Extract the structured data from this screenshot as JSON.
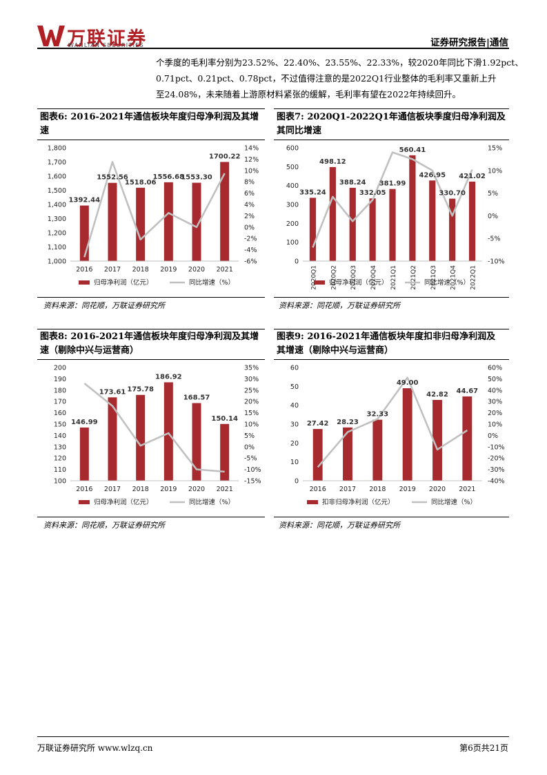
{
  "header": {
    "logo_text": "万联证券",
    "logo_en": "WANLIAN SECURITIES",
    "report_label": "证券研究报告|通信"
  },
  "paragraph": {
    "lines": [
      "个季度的毛利率分别为23.52%、22.40%、23.55%、22.33%，较2020年同比下滑1.92pct、",
      "0.71pct、0.21pct、0.78pct，不过值得注意的是2022Q1行业整体的毛利率又重新上升",
      "至24.08%，未来随着上游原材料紧张的缓解，毛利率有望在2022年持续回升。"
    ]
  },
  "figures": [
    {
      "title_line1": "图表6:  2016-2021年通信板块年度归母净利润及其增",
      "title_line2": "速",
      "source": "资料来源：同花顺，万联证券研究所"
    },
    {
      "title_line1": "图表7:  2020Q1-2022Q1年通信板块季度归母净利润及",
      "title_line2": "其同比增速",
      "source": "资料来源：同花顺，万联证券研究所"
    },
    {
      "title_line1": "图表8:  2016-2021年通信板块年度归母净利润及其增",
      "title_line2": "速（剔除中兴与运营商）",
      "source": "资料来源：同花顺，万联证券研究所"
    },
    {
      "title_line1": "图表9:  2016-2021年通信板块年度扣非归母净利润及",
      "title_line2": "其增速（剔除中兴与运营商）",
      "source": "资料来源：同花顺，万联证券研究所"
    }
  ],
  "chart_data": [
    {
      "type": "bar",
      "categories": [
        "2016",
        "2017",
        "2018",
        "2019",
        "2020",
        "2021"
      ],
      "series": [
        {
          "name": "归母净利润（亿元）",
          "kind": "bar",
          "axis": "left",
          "values": [
            1392.44,
            1552.56,
            1518.06,
            1556.68,
            1553.3,
            1700.22
          ],
          "labels": [
            "1392.44",
            "1552.56",
            "1518.06",
            "1556.68",
            "1553.30",
            "1700.22"
          ]
        },
        {
          "name": "同比增速（%）",
          "kind": "line",
          "axis": "right",
          "values": [
            -5.3,
            11.5,
            -2.2,
            2.5,
            0.0,
            9.5
          ]
        }
      ],
      "left_axis": {
        "min": 1000,
        "max": 1800,
        "ticks": [
          "1,000",
          "1,100",
          "1,200",
          "1,300",
          "1,400",
          "1,500",
          "1,600",
          "1,700",
          "1,800"
        ]
      },
      "right_axis": {
        "min": -6,
        "max": 14,
        "ticks": [
          "-6%",
          "-4%",
          "-2%",
          "0%",
          "2%",
          "4%",
          "6%",
          "8%",
          "10%",
          "12%",
          "14%"
        ]
      },
      "colors": {
        "bar": "#a72b2e",
        "line": "#c0c0c0"
      },
      "legend": "bottom"
    },
    {
      "type": "bar",
      "categories": [
        "2020Q1",
        "2020Q2",
        "2020Q3",
        "2020Q4",
        "2021Q1",
        "2021Q2",
        "2021Q3",
        "2021Q4",
        "2022Q1"
      ],
      "series": [
        {
          "name": "归母净利润（亿元）",
          "kind": "bar",
          "axis": "left",
          "values": [
            335.24,
            498.12,
            388.24,
            332.05,
            381.99,
            560.41,
            426.95,
            330.7,
            421.02
          ],
          "labels": [
            "335.24",
            "498.12",
            "388.24",
            "332.05",
            "381.99",
            "560.41",
            "426.95",
            "330.70",
            "421.02"
          ]
        },
        {
          "name": "同比增速（%）",
          "kind": "line",
          "axis": "right",
          "values": [
            -7.0,
            4.2,
            -1.2,
            3.5,
            14.0,
            12.5,
            10.0,
            0.0,
            10.2
          ]
        }
      ],
      "left_axis": {
        "min": 0,
        "max": 600,
        "ticks": [
          "0",
          "100",
          "200",
          "300",
          "400",
          "500",
          "600"
        ]
      },
      "right_axis": {
        "min": -10,
        "max": 15,
        "ticks": [
          "-10%",
          "-5%",
          "0%",
          "5%",
          "10%",
          "15%"
        ]
      },
      "colors": {
        "bar": "#a72b2e",
        "line": "#c0c0c0"
      },
      "legend": "bottom"
    },
    {
      "type": "bar",
      "categories": [
        "2016",
        "2017",
        "2018",
        "2019",
        "2020",
        "2021"
      ],
      "series": [
        {
          "name": "归母净利润（亿元）",
          "kind": "bar",
          "axis": "left",
          "values": [
            146.99,
            173.61,
            175.78,
            186.92,
            168.57,
            150.14
          ],
          "labels": [
            "146.99",
            "173.61",
            "175.78",
            "186.92",
            "168.57",
            "150.14"
          ]
        },
        {
          "name": "同比增速（%）",
          "kind": "line",
          "axis": "right",
          "values": [
            28.0,
            18.0,
            0.5,
            6.0,
            -10.0,
            -11.0
          ]
        }
      ],
      "left_axis": {
        "min": 100,
        "max": 200,
        "ticks": [
          "100",
          "110",
          "120",
          "130",
          "140",
          "150",
          "160",
          "170",
          "180",
          "190",
          "200"
        ]
      },
      "right_axis": {
        "min": -15,
        "max": 35,
        "ticks": [
          "-15%",
          "-10%",
          "-5%",
          "0%",
          "5%",
          "10%",
          "15%",
          "20%",
          "25%",
          "30%",
          "35%"
        ]
      },
      "colors": {
        "bar": "#a72b2e",
        "line": "#c0c0c0"
      },
      "legend": "bottom"
    },
    {
      "type": "bar",
      "categories": [
        "2016",
        "2017",
        "2018",
        "2019",
        "2020",
        "2021"
      ],
      "series": [
        {
          "name": "扣非归母净利润（亿元）",
          "kind": "bar",
          "axis": "left",
          "values": [
            27.42,
            28.23,
            32.33,
            49.0,
            42.82,
            44.67
          ],
          "labels": [
            "27.42",
            "28.23",
            "32.33",
            "49.00",
            "42.82",
            "44.67"
          ]
        },
        {
          "name": "同比增速（%）",
          "kind": "line",
          "axis": "right",
          "values": [
            -28.0,
            3.0,
            14.5,
            51.0,
            -12.5,
            4.5
          ]
        }
      ],
      "left_axis": {
        "min": 0,
        "max": 60,
        "ticks": [
          "0",
          "10",
          "20",
          "30",
          "40",
          "50",
          "60"
        ]
      },
      "right_axis": {
        "min": -40,
        "max": 60,
        "ticks": [
          "-40%",
          "-30%",
          "-20%",
          "-10%",
          "0%",
          "10%",
          "20%",
          "30%",
          "40%",
          "50%",
          "60%"
        ]
      },
      "colors": {
        "bar": "#a72b2e",
        "line": "#c0c0c0"
      },
      "legend": "bottom"
    }
  ],
  "footer": {
    "left": "万联证券研究所 www.wlzq.cn",
    "right": "第6页共21页"
  }
}
